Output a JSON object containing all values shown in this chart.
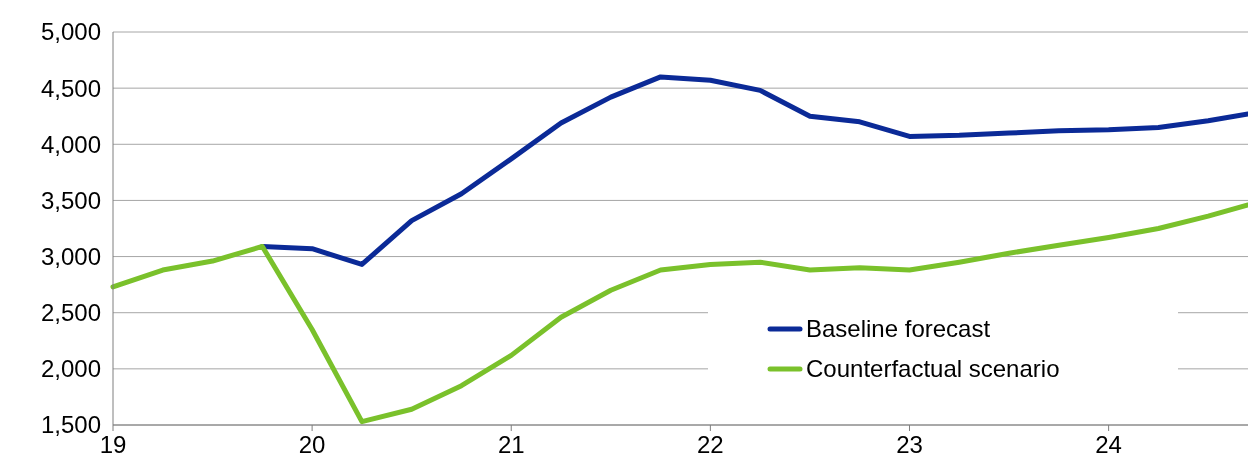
{
  "chart_data": {
    "type": "line",
    "x": [
      19,
      19.25,
      19.5,
      19.75,
      20,
      20.25,
      20.5,
      20.75,
      21,
      21.25,
      21.5,
      21.75,
      22,
      22.25,
      22.5,
      22.75,
      23,
      23.25,
      23.5,
      23.75,
      24,
      24.25,
      24.5,
      24.7
    ],
    "series": [
      {
        "name": "Baseline forecast",
        "color": "#0b2a97",
        "values": [
          null,
          null,
          null,
          3090,
          3070,
          2930,
          3320,
          3560,
          3870,
          4190,
          4420,
          4600,
          4570,
          4480,
          4250,
          4200,
          4070,
          4080,
          4100,
          4120,
          4130,
          4150,
          4210,
          4270
        ]
      },
      {
        "name": "Counterfactual scenario",
        "color": "#7ac12b",
        "values": [
          2730,
          2880,
          2960,
          3090,
          2350,
          1530,
          1640,
          1850,
          2120,
          2460,
          2700,
          2880,
          2930,
          2950,
          2880,
          2900,
          2880,
          2950,
          3030,
          3100,
          3170,
          3250,
          3360,
          3460
        ]
      }
    ],
    "xlim": [
      19,
      24.7
    ],
    "xticks": [
      19,
      20,
      21,
      22,
      23,
      24
    ],
    "ylim": [
      1500,
      5000
    ],
    "yticks": [
      {
        "value": 1500,
        "label": "1,500"
      },
      {
        "value": 2000,
        "label": "2,000"
      },
      {
        "value": 2500,
        "label": "2,500"
      },
      {
        "value": 3000,
        "label": "3,000"
      },
      {
        "value": 3500,
        "label": "3,500"
      },
      {
        "value": 4000,
        "label": "4,000"
      },
      {
        "value": 4500,
        "label": "4,500"
      },
      {
        "value": 5000,
        "label": "5,000"
      }
    ],
    "grid": "y",
    "legend": "bottom right",
    "marker": "none",
    "line_style": "solid"
  }
}
